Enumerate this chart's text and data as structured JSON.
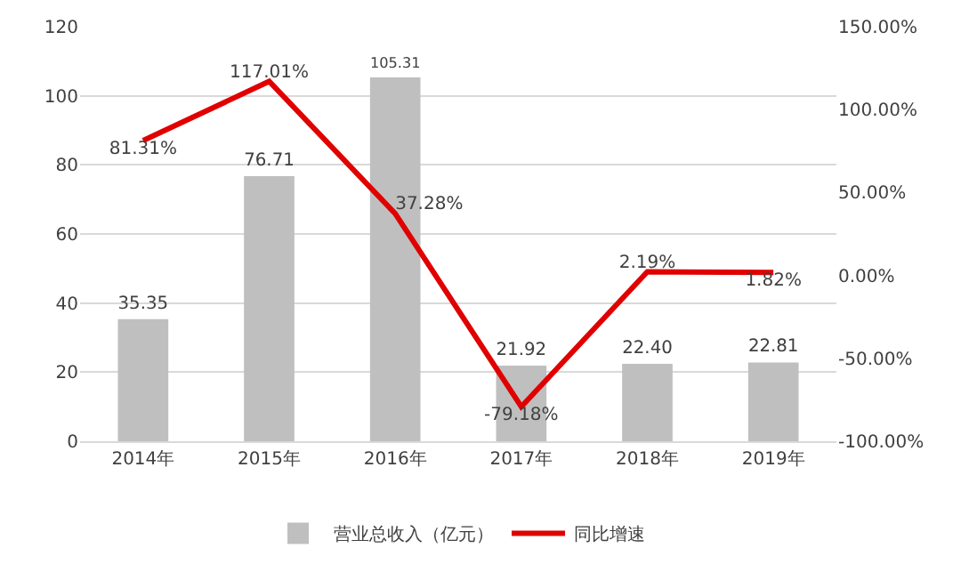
{
  "chart_data": {
    "type": "bar",
    "categories": [
      "2014年",
      "2015年",
      "2016年",
      "2017年",
      "2018年",
      "2019年"
    ],
    "series": [
      {
        "name": "营业总收入（亿元）",
        "color": "#bfbfbf",
        "values": [
          35.35,
          76.71,
          105.31,
          21.92,
          22.4,
          22.81
        ],
        "value_labels": [
          "35.35",
          "76.71",
          "105.31",
          "21.92",
          "22.40",
          "22.81"
        ]
      },
      {
        "name": "同比增速",
        "type": "line",
        "axis": "y2",
        "color": "#e00000",
        "values": [
          81.31,
          117.01,
          37.28,
          -79.18,
          2.19,
          1.82
        ],
        "value_labels": [
          "81.31%",
          "117.01%",
          "37.28%",
          "-79.18%",
          "2.19%",
          "1.82%"
        ]
      }
    ],
    "ylim": [
      0,
      120
    ],
    "yticks": [
      0,
      20,
      40,
      60,
      80,
      100,
      120
    ],
    "y2lim": [
      -100,
      150
    ],
    "y2ticks": [
      {
        "value": -100,
        "label": "-100.00%"
      },
      {
        "value": -50,
        "label": "-50.00%"
      },
      {
        "value": 0,
        "label": "0.00%"
      },
      {
        "value": 50,
        "label": "50.00%"
      },
      {
        "value": 100,
        "label": "100.00%"
      },
      {
        "value": 150,
        "label": "150.00%"
      }
    ],
    "grid": "y",
    "legend": "bottom",
    "marker": "none",
    "line_style": "solid"
  }
}
